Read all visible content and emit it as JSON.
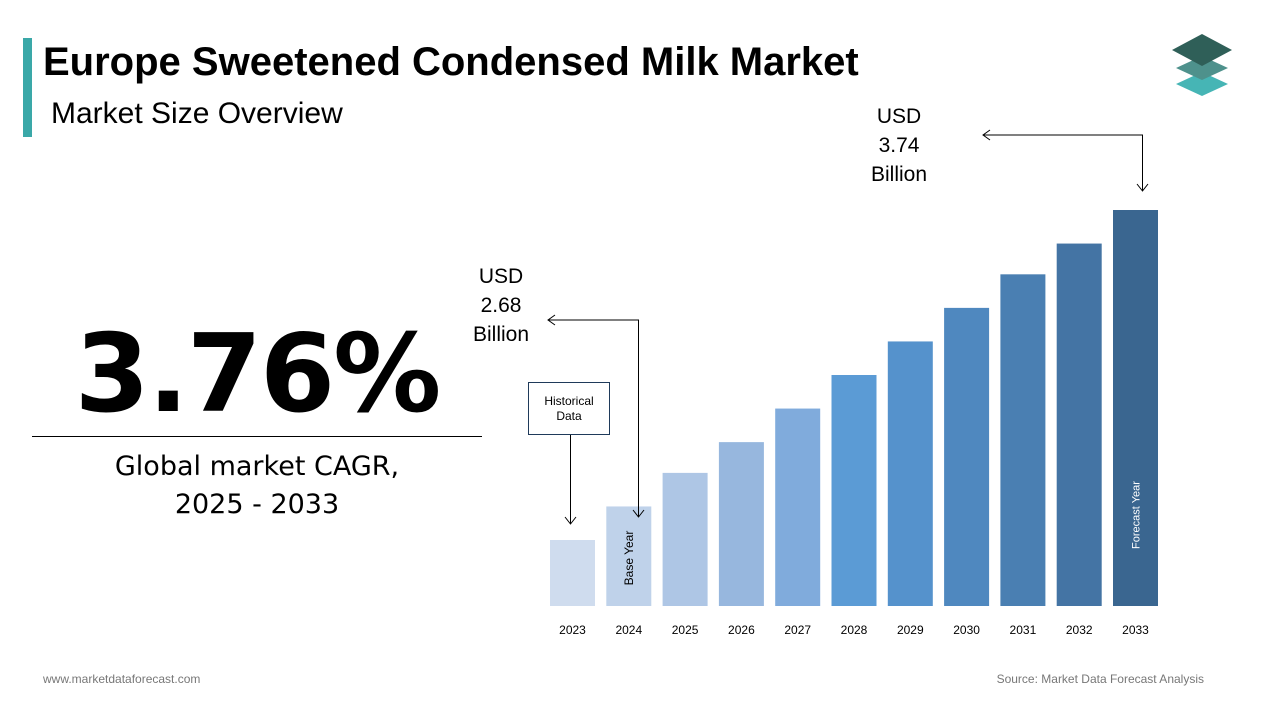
{
  "header": {
    "title": "Europe Sweetened Condensed Milk Market",
    "subtitle": "Market Size Overview",
    "logo_icon": "stacked-layers-logo",
    "accent_color": "#3aa8a8"
  },
  "kpi": {
    "value": "3.76%",
    "label_line1": "Global market CAGR,",
    "label_line2": "2025 - 2033"
  },
  "annotations": {
    "base": {
      "line1": "USD",
      "line2": "2.68",
      "line3": "Billion"
    },
    "forecast": {
      "line1": "USD",
      "line2": "3.74",
      "line3": "Billion"
    },
    "historical": {
      "line1": "Historical",
      "line2": "Data"
    },
    "base_year_label": "Base Year",
    "forecast_year_label": "Forecast Year"
  },
  "chart_data": {
    "type": "bar",
    "title": "",
    "xlabel": "",
    "ylabel": "",
    "categories": [
      "2023",
      "2024",
      "2025",
      "2026",
      "2027",
      "2028",
      "2029",
      "2030",
      "2031",
      "2032",
      "2033"
    ],
    "values": [
      2.56,
      2.68,
      2.8,
      2.91,
      3.03,
      3.15,
      3.27,
      3.39,
      3.51,
      3.62,
      3.74
    ],
    "unit": "USD Billion",
    "colors": [
      "#cfdcee",
      "#bfd2ea",
      "#aec6e5",
      "#97b7de",
      "#80abdc",
      "#5b9bd5",
      "#5592cc",
      "#4f88bf",
      "#4a7fb2",
      "#4474a4",
      "#3a6690"
    ],
    "grid": false
  },
  "footer": {
    "website": "www.marketdataforecast.com",
    "source": "Source: Market Data Forecast Analysis"
  }
}
